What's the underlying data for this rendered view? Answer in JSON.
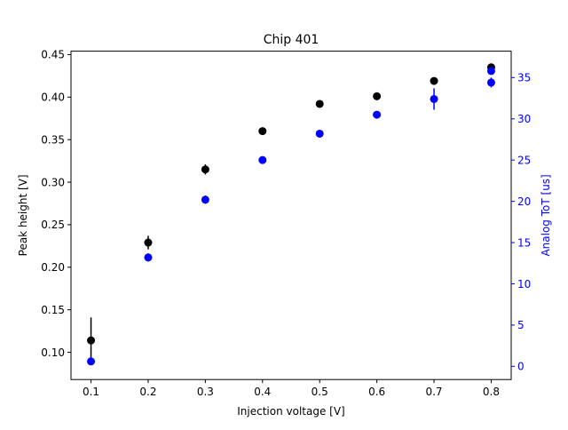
{
  "chart_data": {
    "type": "scatter",
    "title": "Chip 401",
    "xlabel": "Injection voltage [V]",
    "ylabel": "Peak height [V]",
    "y2label": "Analog ToT [us]",
    "xlim": [
      0.065,
      0.835
    ],
    "ylim": [
      0.068,
      0.454
    ],
    "y2lim": [
      -1.6,
      38.2
    ],
    "x_ticks": [
      0.1,
      0.2,
      0.3,
      0.4,
      0.5,
      0.6,
      0.7,
      0.8
    ],
    "x_tick_labels": [
      "0.1",
      "0.2",
      "0.3",
      "0.4",
      "0.5",
      "0.6",
      "0.7",
      "0.8"
    ],
    "y_ticks": [
      0.1,
      0.15,
      0.2,
      0.25,
      0.3,
      0.35,
      0.4,
      0.45
    ],
    "y_tick_labels": [
      "0.10",
      "0.15",
      "0.20",
      "0.25",
      "0.30",
      "0.35",
      "0.40",
      "0.45"
    ],
    "y2_ticks": [
      0,
      5,
      10,
      15,
      20,
      25,
      30,
      35
    ],
    "y2_tick_labels": [
      "0",
      "5",
      "10",
      "15",
      "20",
      "25",
      "30",
      "35"
    ],
    "grid": false,
    "colors": {
      "peak_height": "#000000",
      "analog_tot": "#0000ff",
      "axis": "#000000",
      "right_axis": "#0000ff"
    },
    "series": [
      {
        "axis": "left",
        "color": "#000000",
        "x": [
          0.1,
          0.2,
          0.3,
          0.4,
          0.5,
          0.6,
          0.7,
          0.8
        ],
        "y": [
          0.114,
          0.229,
          0.315,
          0.36,
          0.392,
          0.401,
          0.419,
          0.435
        ],
        "yerr": [
          0.027,
          0.008,
          0.006,
          0.002,
          0.002,
          0.002,
          0.002,
          0.002
        ]
      },
      {
        "axis": "right",
        "color": "#0000ff",
        "x": [
          0.1,
          0.2,
          0.3,
          0.4,
          0.5,
          0.6,
          0.7,
          0.8
        ],
        "y": [
          0.6,
          13.2,
          20.2,
          25.0,
          28.2,
          30.5,
          32.4,
          34.4
        ],
        "yerr": [
          0.3,
          0.5,
          0.5,
          0.3,
          0.3,
          0.3,
          1.3,
          0.6
        ]
      },
      {
        "axis": "right",
        "color": "#0000ff",
        "x": [
          0.8
        ],
        "y": [
          35.8
        ],
        "yerr": [
          0.3
        ]
      }
    ]
  }
}
